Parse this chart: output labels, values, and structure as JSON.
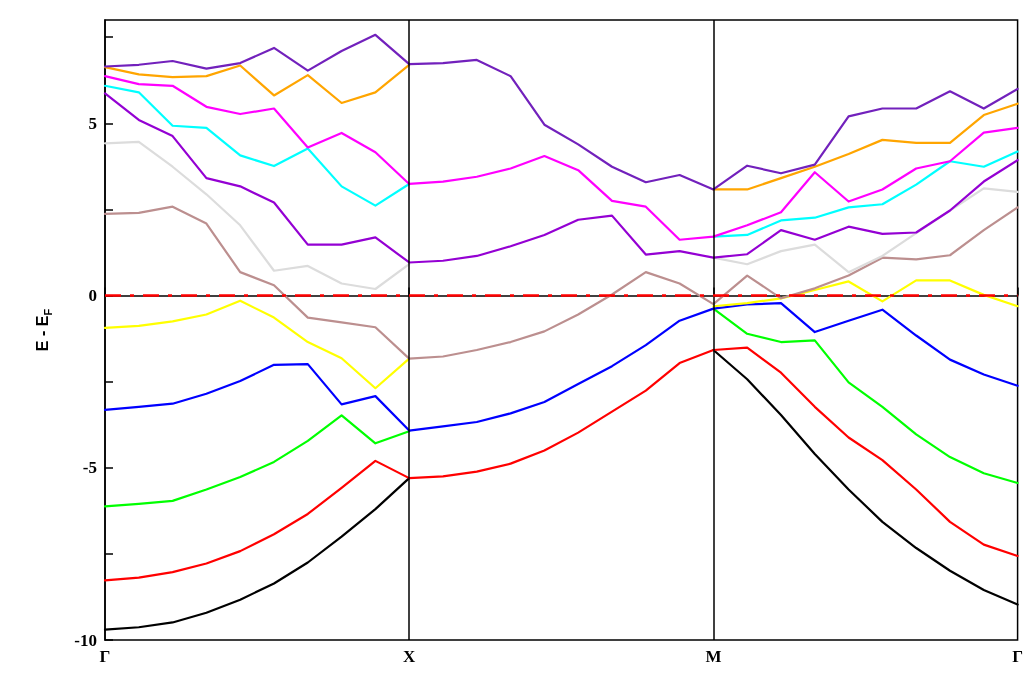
{
  "chart_data": {
    "type": "line",
    "ylabel": "E - E$_{F}$",
    "categories": [
      "Γ",
      null,
      null,
      null,
      null,
      null,
      null,
      null,
      null,
      "X",
      null,
      null,
      null,
      null,
      null,
      null,
      null,
      null,
      "M",
      null,
      null,
      null,
      null,
      null,
      null,
      null,
      null,
      "Γ"
    ],
    "ylim": [
      -10,
      8
    ],
    "yticks": [
      -10,
      {
        "value": -7.5,
        "label": null
      },
      -5,
      {
        "value": -2.5,
        "label": null
      },
      0,
      {
        "value": 2.5,
        "label": null
      },
      5,
      {
        "value": 7.5,
        "label": null
      }
    ],
    "marker": "none",
    "line_style": "solid",
    "ref_lines": [
      {
        "axis": "x",
        "value": "X",
        "label": null,
        "color": "#000000",
        "line_style": "solid"
      },
      {
        "axis": "x",
        "value": "M",
        "label": null,
        "color": "#000000",
        "line_style": "solid"
      },
      {
        "axis": "y",
        "value": 0,
        "label": null,
        "color": "#ff0000",
        "line_style": "dashed"
      }
    ],
    "series": [
      {
        "color": "#000000",
        "values": [
          -9.7,
          -9.63,
          -9.49,
          -9.21,
          -8.83,
          -8.36,
          -7.75,
          -7.0,
          -6.2,
          -5.3,
          null,
          null,
          null,
          null,
          null,
          null,
          null,
          null,
          -1.58,
          -2.43,
          -3.47,
          -4.6,
          -5.63,
          -6.57,
          -7.33,
          -7.99,
          -8.55,
          -8.97
        ]
      },
      {
        "color": "#ff0000",
        "values": [
          -8.27,
          -8.19,
          -8.03,
          -7.78,
          -7.42,
          -6.93,
          -6.34,
          -5.58,
          -4.8,
          -5.3,
          -5.25,
          -5.11,
          -4.88,
          -4.5,
          -3.98,
          -3.37,
          -2.76,
          -1.96,
          -1.58,
          -1.51,
          -2.24,
          -3.23,
          -4.12,
          -4.78,
          -5.63,
          -6.57,
          -7.23,
          -7.56
        ]
      },
      {
        "color": "#00ff00",
        "values": [
          -6.12,
          -6.05,
          -5.96,
          -5.63,
          -5.27,
          -4.83,
          -4.22,
          -3.48,
          -4.29,
          -3.94,
          null,
          null,
          null,
          null,
          null,
          null,
          null,
          null,
          -0.38,
          -1.11,
          -1.35,
          -1.3,
          -2.52,
          -3.23,
          -4.03,
          -4.69,
          -5.16,
          -5.44
        ]
      },
      {
        "color": "#0000ff",
        "values": [
          -3.32,
          -3.23,
          -3.14,
          -2.85,
          -2.48,
          -2.01,
          -1.99,
          -3.16,
          -2.92,
          -3.92,
          -3.8,
          -3.67,
          -3.42,
          -3.09,
          -2.57,
          -2.05,
          -1.44,
          -0.73,
          -0.38,
          -0.26,
          -0.22,
          -1.06,
          -0.73,
          -0.41,
          -1.16,
          -1.86,
          -2.29,
          -2.62
        ]
      },
      {
        "color": "#ffff00",
        "values": [
          -0.94,
          -0.88,
          -0.75,
          -0.55,
          -0.15,
          -0.64,
          -1.35,
          -1.82,
          -2.69,
          -1.83,
          null,
          null,
          null,
          null,
          null,
          null,
          null,
          null,
          -0.31,
          -0.22,
          -0.08,
          0.16,
          0.41,
          -0.17,
          0.44,
          0.44,
          0.02,
          -0.31
        ]
      },
      {
        "color": "#bc8f8f",
        "values": [
          2.37,
          2.4,
          2.58,
          2.09,
          0.68,
          0.3,
          -0.64,
          -0.78,
          -0.92,
          -1.83,
          -1.77,
          -1.58,
          -1.35,
          -1.04,
          -0.55,
          0.03,
          0.68,
          0.35,
          -0.25,
          0.58,
          -0.08,
          0.21,
          0.58,
          1.1,
          1.05,
          1.17,
          1.9,
          2.56
        ]
      },
      {
        "color": "#dcdcdc",
        "values": [
          4.42,
          4.46,
          3.74,
          2.94,
          2.04,
          0.72,
          0.86,
          0.35,
          0.19,
          0.91,
          null,
          null,
          null,
          null,
          null,
          null,
          null,
          null,
          1.1,
          0.91,
          1.29,
          1.48,
          0.68,
          1.15,
          1.81,
          2.47,
          3.11,
          3.01
        ]
      },
      {
        "color": "#9400d3",
        "values": [
          5.87,
          5.1,
          4.63,
          3.41,
          3.17,
          2.7,
          1.48,
          1.48,
          1.69,
          0.96,
          1.01,
          1.15,
          1.43,
          1.76,
          2.2,
          2.32,
          1.19,
          1.29,
          1.1,
          1.2,
          1.9,
          1.62,
          2.0,
          1.79,
          1.83,
          2.47,
          3.31,
          3.93
        ]
      },
      {
        "color": "#00ffff",
        "values": [
          6.09,
          5.9,
          4.93,
          4.87,
          4.07,
          3.76,
          4.27,
          3.17,
          2.61,
          3.24,
          null,
          null,
          null,
          null,
          null,
          null,
          null,
          null,
          1.71,
          1.76,
          2.18,
          2.26,
          2.56,
          2.65,
          3.22,
          3.9,
          3.74,
          4.18
        ]
      },
      {
        "color": "#ff00ff",
        "values": [
          6.37,
          6.14,
          6.09,
          5.48,
          5.27,
          5.43,
          4.3,
          4.72,
          4.16,
          3.24,
          3.31,
          3.45,
          3.69,
          4.05,
          3.64,
          2.75,
          2.58,
          1.62,
          1.71,
          2.04,
          2.42,
          3.58,
          2.73,
          3.08,
          3.69,
          3.9,
          4.73,
          4.87
        ]
      },
      {
        "color": "#ffa500",
        "values": [
          6.63,
          6.42,
          6.34,
          6.37,
          6.68,
          5.81,
          6.4,
          5.59,
          5.9,
          6.7,
          null,
          null,
          null,
          null,
          null,
          null,
          null,
          null,
          3.08,
          3.08,
          3.41,
          3.74,
          4.11,
          4.52,
          4.43,
          4.43,
          5.24,
          5.57
        ]
      },
      {
        "color": "#7221bc",
        "values": [
          6.65,
          6.7,
          6.81,
          6.59,
          6.75,
          7.19,
          6.53,
          7.1,
          7.57,
          6.72,
          6.75,
          6.84,
          6.37,
          4.96,
          4.39,
          3.74,
          3.29,
          3.5,
          3.08,
          3.77,
          3.55,
          3.8,
          5.2,
          5.43,
          5.43,
          5.93,
          5.43,
          6.0
        ]
      }
    ]
  }
}
